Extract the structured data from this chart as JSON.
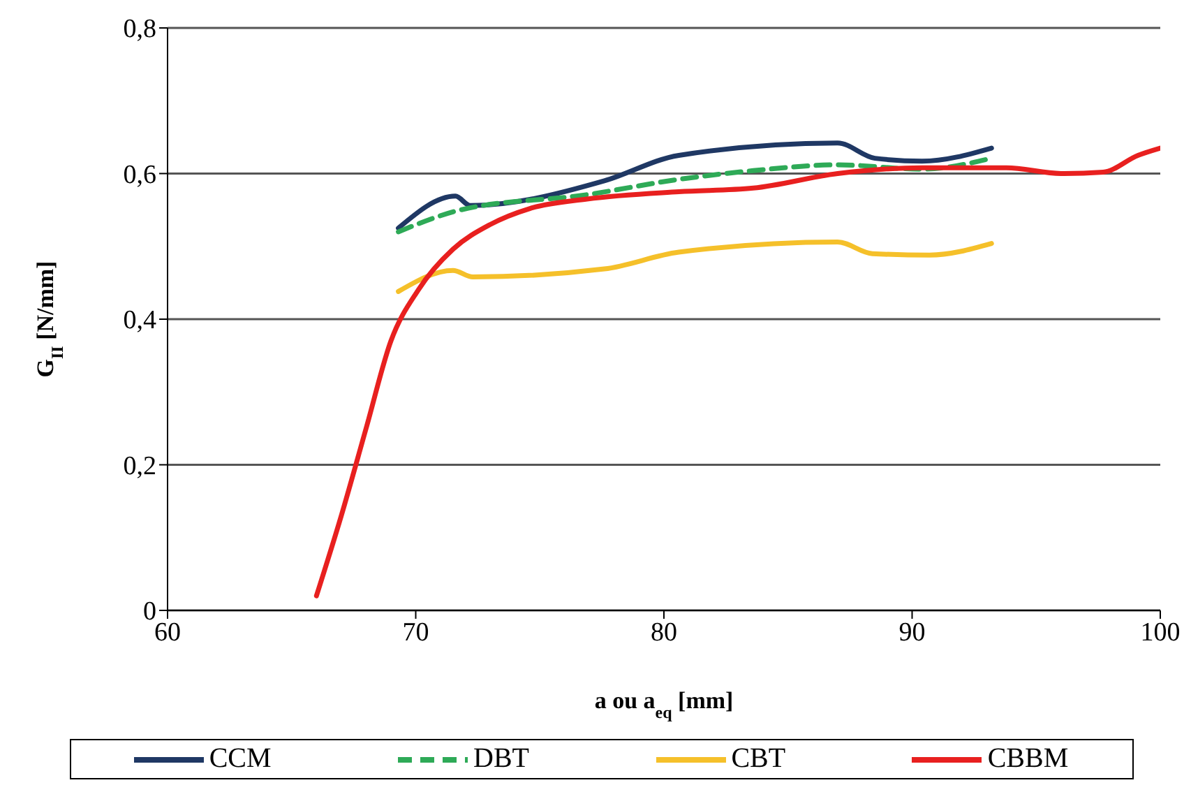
{
  "chart_data": {
    "type": "line",
    "xlabel": "a ou a$_{eq}$ [mm]",
    "ylabel": "G$_{II}$ [N/mm]",
    "xlim": [
      60,
      100
    ],
    "xticks": [
      60,
      70,
      80,
      90,
      100
    ],
    "ylim": [
      0,
      0.8
    ],
    "yticks": [
      {
        "value": 0,
        "label": "0"
      },
      {
        "value": 0.2,
        "label": "0,2"
      },
      {
        "value": 0.4,
        "label": "0,4"
      },
      {
        "value": 0.6,
        "label": "0,6"
      },
      {
        "value": 0.8,
        "label": "0,8"
      }
    ],
    "grid": "y",
    "legend": "bottom",
    "marker": "none",
    "series": [
      {
        "name": "CCM",
        "color": "#1f3864",
        "line_style": "solid",
        "x": [
          69.3,
          71.6,
          72.2,
          77.6,
          80.6,
          87.0,
          88.5,
          90.4,
          93.2
        ],
        "values": [
          0.525,
          0.569,
          0.556,
          0.59,
          0.625,
          0.642,
          0.621,
          0.617,
          0.635
        ]
      },
      {
        "name": "DBT",
        "color": "#2eaa57",
        "line_style": "dashed",
        "x": [
          69.3,
          71.8,
          76.9,
          80.6,
          83.6,
          87.0,
          90.4,
          93.2
        ],
        "values": [
          0.52,
          0.55,
          0.571,
          0.592,
          0.604,
          0.612,
          0.606,
          0.621
        ]
      },
      {
        "name": "CBT",
        "color": "#f5c02a",
        "line_style": "solid",
        "x": [
          69.3,
          71.5,
          72.3,
          77.6,
          80.6,
          87.0,
          88.4,
          90.7,
          93.2
        ],
        "values": [
          0.438,
          0.467,
          0.458,
          0.469,
          0.492,
          0.506,
          0.49,
          0.488,
          0.504
        ]
      },
      {
        "name": "CBBM",
        "color": "#e8201f",
        "line_style": "solid",
        "x": [
          66.0,
          67.0,
          68.0,
          69.0,
          70.1,
          71.5,
          73.0,
          74.6,
          76.9,
          80.6,
          83.6,
          87.0,
          90.4,
          93.8,
          96.0,
          97.7,
          99.1,
          100.0
        ],
        "values": [
          0.02,
          0.13,
          0.25,
          0.37,
          0.44,
          0.496,
          0.53,
          0.552,
          0.565,
          0.575,
          0.58,
          0.6,
          0.608,
          0.608,
          0.6,
          0.602,
          0.625,
          0.635
        ]
      }
    ]
  }
}
